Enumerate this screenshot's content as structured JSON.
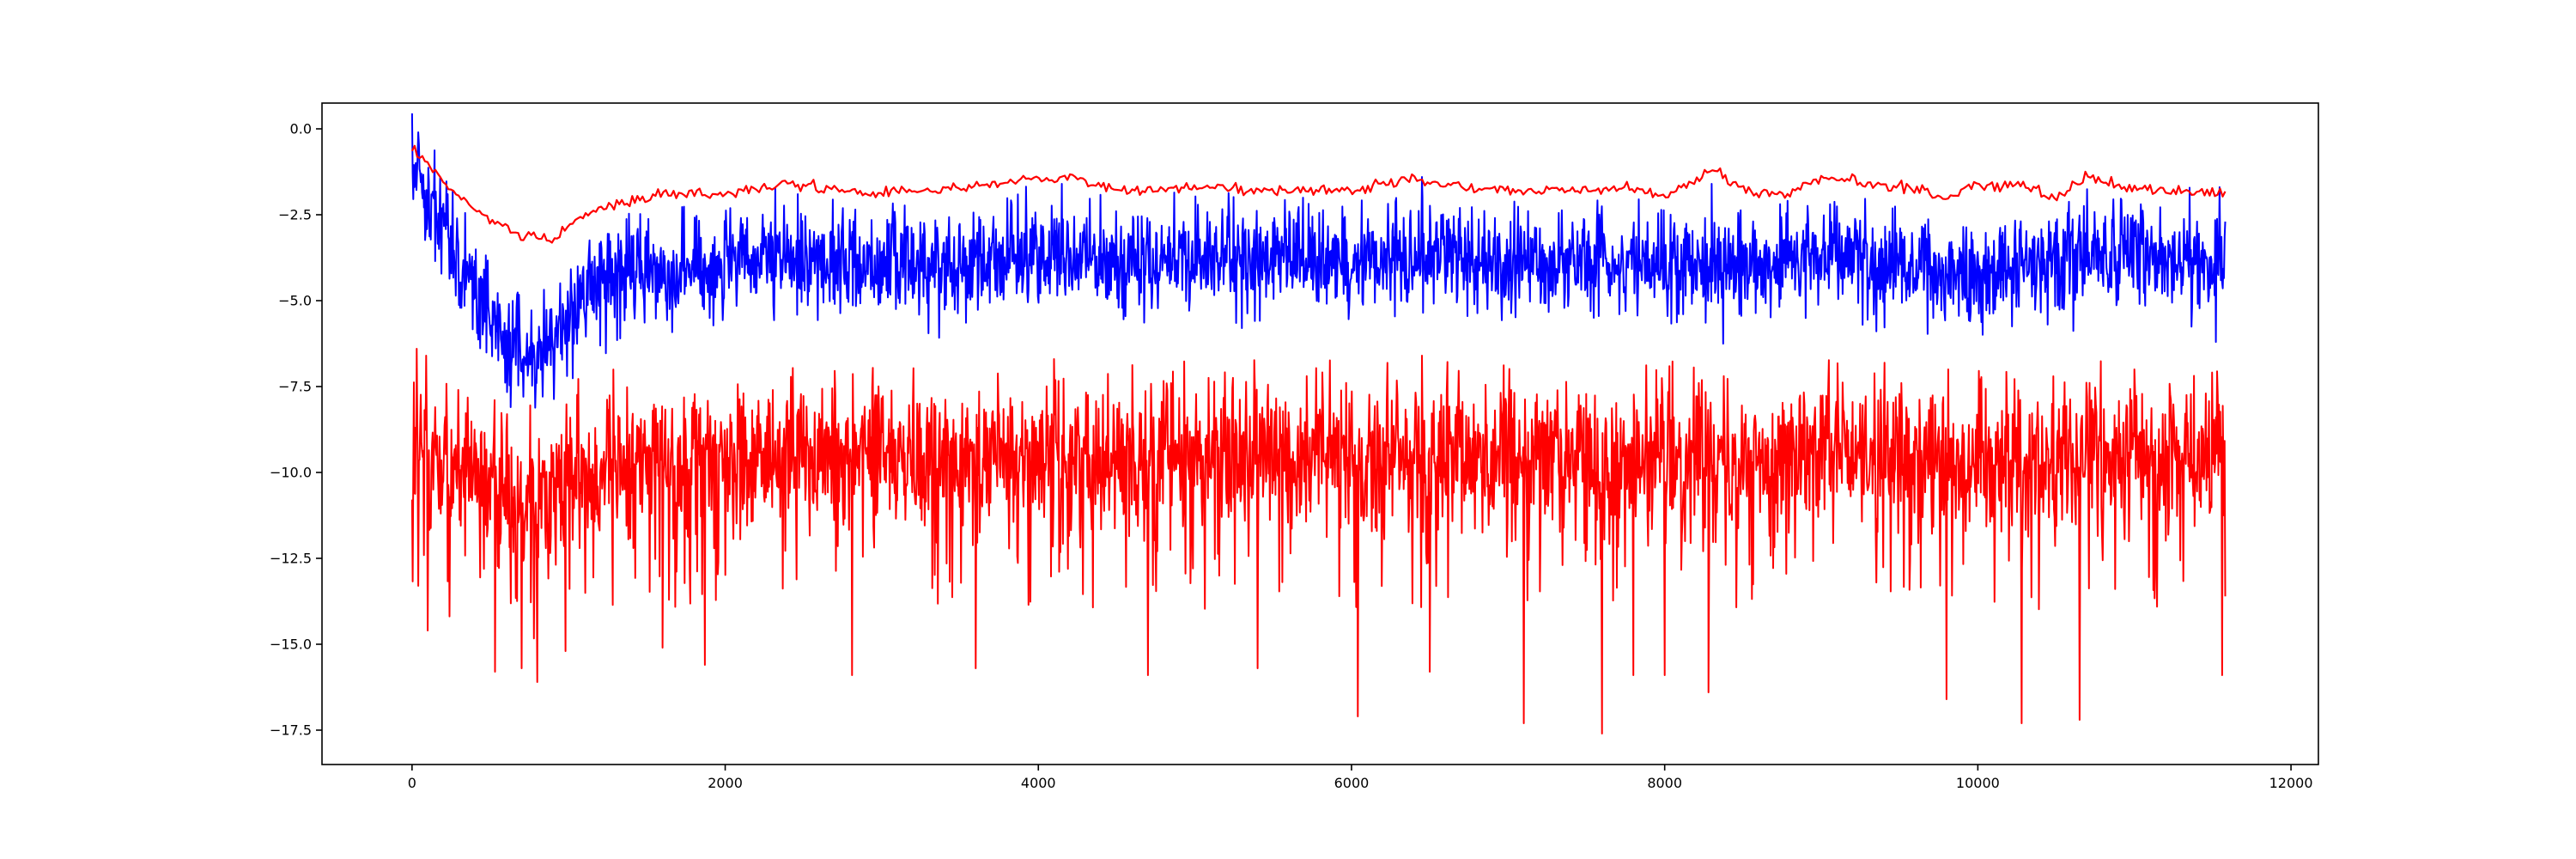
{
  "chart_data": {
    "type": "line",
    "title": "",
    "xlabel": "",
    "ylabel": "",
    "xlim": [
      -575,
      12175
    ],
    "ylim": [
      -18.5,
      0.75
    ],
    "grid": false,
    "legend": "none",
    "x_ticks": [
      0,
      2000,
      4000,
      6000,
      8000,
      10000,
      12000
    ],
    "x_tick_labels": [
      "0",
      "2000",
      "4000",
      "6000",
      "8000",
      "10000",
      "12000"
    ],
    "y_ticks": [
      0.0,
      -2.5,
      -5.0,
      -7.5,
      -10.0,
      -12.5,
      -15.0,
      -17.5
    ],
    "y_tick_labels": [
      "0.0",
      "−2.5",
      "−5.0",
      "−7.5",
      "−10.0",
      "−12.5",
      "−15.0",
      "−17.5"
    ],
    "series": [
      {
        "color": "#ff0000",
        "style": "noisy",
        "x_range": [
          0,
          11580
        ],
        "mean_curve": {
          "x": [
            0,
            100,
            300,
            500,
            700,
            850,
            1000,
            1200,
            1500,
            2000,
            3000,
            4000,
            5000,
            6000,
            7000,
            8000,
            9000,
            10000,
            11000,
            11580
          ],
          "y": [
            -9.3,
            -9.6,
            -9.9,
            -10.2,
            -10.5,
            -10.6,
            -10.3,
            -9.9,
            -9.6,
            -9.5,
            -9.5,
            -9.5,
            -9.5,
            -9.5,
            -9.5,
            -9.5,
            -9.5,
            -9.5,
            -9.5,
            -9.5
          ]
        },
        "upper_envelope": -7.2,
        "lower_typical": -13.0,
        "extreme_lows": [
          {
            "x": 40,
            "y": -13.3
          },
          {
            "x": 100,
            "y": -14.6
          },
          {
            "x": 530,
            "y": -15.8
          },
          {
            "x": 700,
            "y": -15.7
          },
          {
            "x": 800,
            "y": -16.1
          },
          {
            "x": 980,
            "y": -15.2
          },
          {
            "x": 1600,
            "y": -15.1
          },
          {
            "x": 1870,
            "y": -15.6
          },
          {
            "x": 2810,
            "y": -15.9
          },
          {
            "x": 3600,
            "y": -15.7
          },
          {
            "x": 4700,
            "y": -15.9
          },
          {
            "x": 5400,
            "y": -15.7
          },
          {
            "x": 6040,
            "y": -17.1
          },
          {
            "x": 6500,
            "y": -15.8
          },
          {
            "x": 7100,
            "y": -17.3
          },
          {
            "x": 7600,
            "y": -17.6
          },
          {
            "x": 7800,
            "y": -15.9
          },
          {
            "x": 8000,
            "y": -15.9
          },
          {
            "x": 8280,
            "y": -16.4
          },
          {
            "x": 9800,
            "y": -16.6
          },
          {
            "x": 10280,
            "y": -17.3
          },
          {
            "x": 10650,
            "y": -17.2
          },
          {
            "x": 11560,
            "y": -15.9
          }
        ],
        "extreme_highs": [
          {
            "x": 30,
            "y": -6.4
          },
          {
            "x": 90,
            "y": -6.6
          },
          {
            "x": 4100,
            "y": -6.7
          },
          {
            "x": 6450,
            "y": -6.6
          },
          {
            "x": 11000,
            "y": -7.0
          }
        ]
      },
      {
        "color": "#0000ff",
        "style": "noisy",
        "x_range": [
          0,
          11580
        ],
        "mean_curve": {
          "x": [
            0,
            100,
            200,
            300,
            400,
            500,
            600,
            700,
            800,
            850,
            900,
            1000,
            1100,
            1200,
            1400,
            1600,
            2000,
            2500,
            3000,
            3500,
            4000,
            4500,
            5000,
            5500,
            6000,
            6500,
            7000,
            7500,
            8000,
            8500,
            9000,
            9500,
            10000,
            10500,
            11000,
            11580
          ],
          "y": [
            -0.7,
            -1.8,
            -2.6,
            -3.7,
            -4.7,
            -5.5,
            -6.2,
            -6.5,
            -6.7,
            -6.6,
            -6.2,
            -5.4,
            -4.8,
            -4.4,
            -4.2,
            -4.1,
            -4.0,
            -3.8,
            -3.9,
            -3.9,
            -3.6,
            -3.9,
            -3.8,
            -3.8,
            -3.8,
            -3.6,
            -4.0,
            -3.8,
            -3.9,
            -4.0,
            -3.5,
            -4.0,
            -4.3,
            -3.7,
            -3.7,
            -3.8
          ]
        },
        "noise_amplitude": 0.75,
        "extreme_lows": [
          {
            "x": 630,
            "y": -8.1
          },
          {
            "x": 5300,
            "y": -5.8
          },
          {
            "x": 9950,
            "y": -5.6
          }
        ],
        "extreme_highs": [
          {
            "x": 40,
            "y": -0.1
          },
          {
            "x": 4150,
            "y": -1.6
          },
          {
            "x": 6450,
            "y": -1.4
          },
          {
            "x": 8300,
            "y": -1.6
          }
        ]
      },
      {
        "color": "#ff0000",
        "style": "smooth",
        "x": [
          0,
          100,
          200,
          300,
          400,
          500,
          600,
          700,
          800,
          900,
          1000,
          1200,
          1400,
          1600,
          2000,
          2400,
          2600,
          3000,
          3500,
          4000,
          4200,
          4500,
          5000,
          5500,
          6000,
          6400,
          6500,
          7000,
          7500,
          7800,
          8000,
          8300,
          8500,
          8800,
          9000,
          9500,
          9800,
          10000,
          10300,
          10500,
          10700,
          11000,
          11300,
          11580
        ],
        "y": [
          -0.6,
          -1.0,
          -1.5,
          -2.0,
          -2.4,
          -2.7,
          -2.9,
          -3.2,
          -3.1,
          -3.3,
          -2.8,
          -2.3,
          -2.1,
          -1.9,
          -1.9,
          -1.6,
          -1.7,
          -1.9,
          -1.7,
          -1.5,
          -1.4,
          -1.8,
          -1.7,
          -1.8,
          -1.8,
          -1.4,
          -1.6,
          -1.8,
          -1.8,
          -1.7,
          -2.0,
          -1.2,
          -1.8,
          -1.9,
          -1.4,
          -1.7,
          -2.0,
          -1.6,
          -1.7,
          -2.0,
          -1.4,
          -1.7,
          -1.8,
          -1.9
        ]
      }
    ]
  }
}
